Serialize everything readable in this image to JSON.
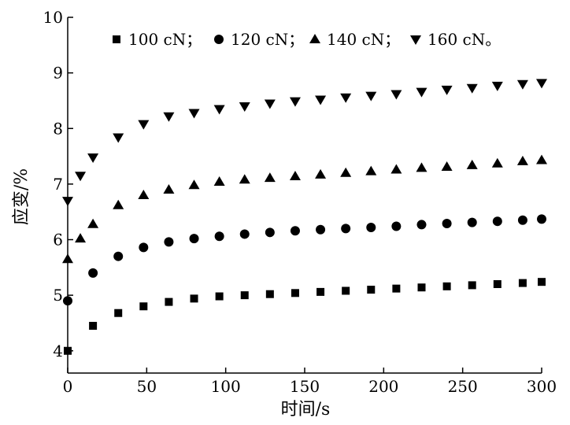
{
  "chart_data": {
    "type": "scatter",
    "xlabel": "时间/s",
    "ylabel": "应变/%",
    "xlim": [
      0,
      300
    ],
    "ylim": [
      3.6,
      10
    ],
    "xticks": [
      0,
      50,
      100,
      150,
      200,
      250,
      300
    ],
    "yticks": [
      4,
      5,
      6,
      7,
      8,
      9,
      10
    ],
    "grid": false,
    "legend_position": "top",
    "legend_suffix": "。",
    "series": [
      {
        "name": "100 cN",
        "marker": "square",
        "x": [
          0,
          16,
          32,
          48,
          64,
          80,
          96,
          112,
          128,
          144,
          160,
          176,
          192,
          208,
          224,
          240,
          256,
          272,
          288,
          300
        ],
        "y": [
          4.0,
          4.45,
          4.68,
          4.8,
          4.88,
          4.94,
          4.98,
          5.0,
          5.02,
          5.04,
          5.06,
          5.08,
          5.1,
          5.12,
          5.14,
          5.16,
          5.18,
          5.2,
          5.22,
          5.24
        ]
      },
      {
        "name": "120 cN",
        "marker": "circle",
        "x": [
          0,
          16,
          32,
          48,
          64,
          80,
          96,
          112,
          128,
          144,
          160,
          176,
          192,
          208,
          224,
          240,
          256,
          272,
          288,
          300
        ],
        "y": [
          4.9,
          5.4,
          5.7,
          5.86,
          5.96,
          6.02,
          6.06,
          6.1,
          6.13,
          6.16,
          6.18,
          6.2,
          6.22,
          6.24,
          6.27,
          6.29,
          6.31,
          6.33,
          6.35,
          6.37
        ]
      },
      {
        "name": "140 cN",
        "marker": "triangle-up",
        "x": [
          0,
          8,
          16,
          32,
          48,
          64,
          80,
          96,
          112,
          128,
          144,
          160,
          176,
          192,
          208,
          224,
          240,
          256,
          272,
          288,
          300
        ],
        "y": [
          5.65,
          6.02,
          6.28,
          6.62,
          6.8,
          6.9,
          6.98,
          7.04,
          7.08,
          7.11,
          7.14,
          7.17,
          7.2,
          7.23,
          7.26,
          7.29,
          7.31,
          7.34,
          7.37,
          7.41,
          7.43
        ]
      },
      {
        "name": "160 cN",
        "marker": "triangle-down",
        "x": [
          0,
          8,
          16,
          32,
          48,
          64,
          80,
          96,
          112,
          128,
          144,
          160,
          176,
          192,
          208,
          224,
          240,
          256,
          272,
          288,
          300
        ],
        "y": [
          6.7,
          7.15,
          7.48,
          7.84,
          8.08,
          8.22,
          8.28,
          8.35,
          8.4,
          8.45,
          8.49,
          8.52,
          8.56,
          8.59,
          8.62,
          8.66,
          8.7,
          8.73,
          8.77,
          8.8,
          8.82
        ]
      }
    ]
  }
}
